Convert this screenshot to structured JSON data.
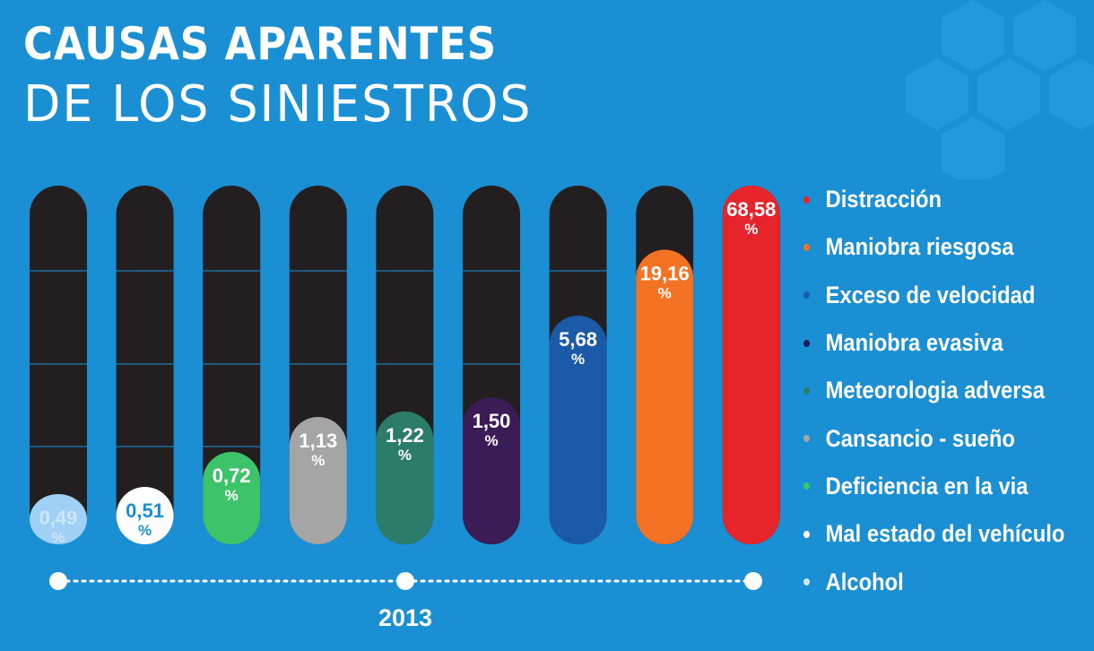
{
  "title_line1": "CAUSAS APARENTES",
  "title_line2": "DE LOS SINIESTROS",
  "year": "2013",
  "chart_data": {
    "type": "bar",
    "title": "CAUSAS APARENTES DE LOS SINIESTROS",
    "unit": "%",
    "categories": [
      "Alcohol",
      "Mal estado del vehículo",
      "Deficiencia en la via",
      "Cansancio - sueño",
      "Meteorologia adversa",
      "Maniobra evasiva",
      "Exceso de velocidad",
      "Maniobra riesgosa",
      "Distracción"
    ],
    "values": [
      0.49,
      0.51,
      0.72,
      1.13,
      1.22,
      1.5,
      5.68,
      19.16,
      68.58
    ],
    "value_labels": [
      "0,49",
      "0,51",
      "0,72",
      "1,13",
      "1,22",
      "1,50",
      "5,68",
      "19,16",
      "68,58"
    ],
    "colors": [
      "#9fd0f5",
      "#ffffff",
      "#3dc46a",
      "#a5a5a5",
      "#2c7c6a",
      "#3c1c56",
      "#1a5aa6",
      "#f37224",
      "#e52529"
    ],
    "label_colors": [
      "#cfe6f8",
      "#1a8fd4",
      "#ffffff",
      "#ffffff",
      "#ffffff",
      "#ffffff",
      "#ffffff",
      "#ffffff",
      "#ffffff"
    ],
    "track_color": "#231f20",
    "grid": true
  },
  "legend": [
    {
      "label": "Distracción",
      "color": "#e52529"
    },
    {
      "label": "Maniobra riesgosa",
      "color": "#f37224"
    },
    {
      "label": "Exceso de velocidad",
      "color": "#1a5aa6"
    },
    {
      "label": "Maniobra evasiva",
      "color": "#1a1f5a"
    },
    {
      "label": "Meteorologia adversa",
      "color": "#2c7c6a"
    },
    {
      "label": "Cansancio - sueño",
      "color": "#a5a5a5"
    },
    {
      "label": "Deficiencia en la via",
      "color": "#3dc46a"
    },
    {
      "label": "Mal estado del vehículo",
      "color": "#ffffff"
    },
    {
      "label": "Alcohol",
      "color": "#cfe6f8"
    }
  ]
}
